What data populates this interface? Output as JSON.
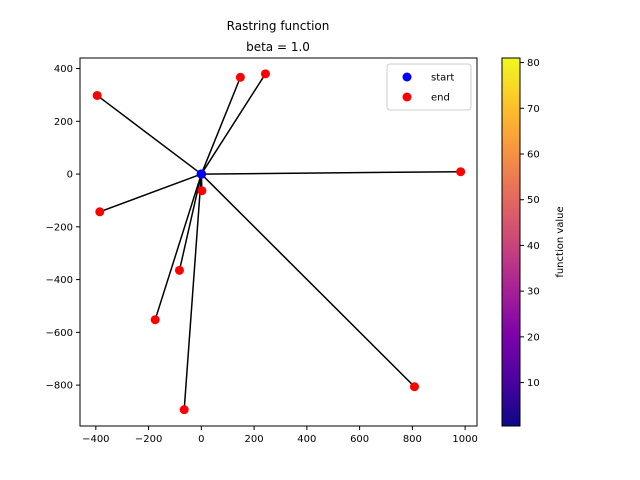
{
  "chart_data": {
    "type": "scatter",
    "title": "Rastring function",
    "subtitle": "beta = 1.0",
    "xlabel": "",
    "ylabel": "",
    "xlim": [
      -460,
      1045
    ],
    "ylim": [
      -955,
      440
    ],
    "x_ticks": [
      -400,
      -200,
      0,
      200,
      400,
      600,
      800,
      1000
    ],
    "y_ticks": [
      -800,
      -600,
      -400,
      -200,
      0,
      200,
      400
    ],
    "grid": false,
    "legend": {
      "placement": "top-right",
      "entries": [
        {
          "label": "start",
          "color": "#0000ff"
        },
        {
          "label": "end",
          "color": "#ff0000"
        }
      ]
    },
    "start": {
      "x": 0,
      "y": 0
    },
    "start_points": [
      {
        "x": 0,
        "y": 0
      },
      {
        "x": 0,
        "y": 0
      },
      {
        "x": 0,
        "y": 0
      },
      {
        "x": 0,
        "y": 0
      },
      {
        "x": 0,
        "y": 0
      },
      {
        "x": 0,
        "y": 0
      },
      {
        "x": 0,
        "y": 0
      },
      {
        "x": 0,
        "y": 0
      },
      {
        "x": 0,
        "y": 0
      },
      {
        "x": 0,
        "y": 0
      }
    ],
    "end_points": [
      {
        "x": -395,
        "y": 298
      },
      {
        "x": 148,
        "y": 367
      },
      {
        "x": 243,
        "y": 380
      },
      {
        "x": 983,
        "y": 9
      },
      {
        "x": 2,
        "y": -63
      },
      {
        "x": -385,
        "y": -143
      },
      {
        "x": -83,
        "y": -365
      },
      {
        "x": -175,
        "y": -552
      },
      {
        "x": 808,
        "y": -806
      },
      {
        "x": -65,
        "y": -893
      }
    ],
    "colorbar": {
      "label": "function value",
      "vmin": 0.5,
      "vmax": 81,
      "ticks": [
        10,
        20,
        30,
        40,
        50,
        60,
        70,
        80
      ],
      "colormap": "plasma"
    }
  }
}
